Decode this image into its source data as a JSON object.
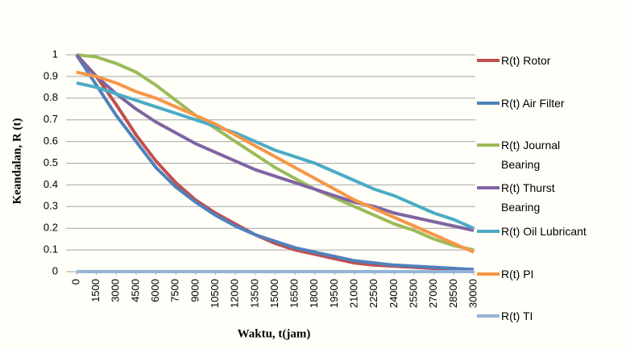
{
  "chart_data": {
    "type": "line",
    "y_label": "Keandalan, R (t)",
    "x_label": "Waktu, t(jam)",
    "x": [
      0,
      1500,
      3000,
      4500,
      6000,
      7500,
      9000,
      10500,
      12000,
      13500,
      15000,
      16500,
      18000,
      19500,
      21000,
      22500,
      24000,
      25500,
      27000,
      28500,
      30000
    ],
    "xlim": [
      0,
      30000
    ],
    "xticks": [
      0,
      1500,
      3000,
      4500,
      6000,
      7500,
      9000,
      10500,
      12000,
      13500,
      15000,
      16500,
      18000,
      19500,
      21000,
      22500,
      24000,
      25500,
      27000,
      28500,
      30000
    ],
    "ylim": [
      0,
      1
    ],
    "yticks": [
      0,
      0.1,
      0.2,
      0.3,
      0.4,
      0.5,
      0.6,
      0.7,
      0.8,
      0.9,
      1
    ],
    "grid": true,
    "legend": "right",
    "series": [
      {
        "name": "R(t) Rotor",
        "color": "#c0504d",
        "values": [
          1,
          0.9,
          0.77,
          0.63,
          0.51,
          0.41,
          0.33,
          0.27,
          0.22,
          0.17,
          0.13,
          0.1,
          0.08,
          0.06,
          0.04,
          0.03,
          0.025,
          0.02,
          0.015,
          0.01,
          0.01
        ]
      },
      {
        "name": "R(t) Air Filter",
        "color": "#4f81bd",
        "values": [
          1,
          0.86,
          0.72,
          0.6,
          0.48,
          0.39,
          0.32,
          0.26,
          0.21,
          0.17,
          0.14,
          0.11,
          0.09,
          0.07,
          0.05,
          0.04,
          0.03,
          0.025,
          0.02,
          0.015,
          0.01
        ]
      },
      {
        "name": "R(t) Journal Bearing",
        "color": "#9bbb59",
        "values": [
          1,
          0.99,
          0.96,
          0.92,
          0.86,
          0.79,
          0.72,
          0.66,
          0.6,
          0.54,
          0.48,
          0.43,
          0.38,
          0.34,
          0.3,
          0.26,
          0.22,
          0.19,
          0.15,
          0.12,
          0.1
        ]
      },
      {
        "name": "R(t) Thurst Bearing",
        "color": "#8064a2",
        "values": [
          1,
          0.9,
          0.82,
          0.75,
          0.69,
          0.64,
          0.59,
          0.55,
          0.51,
          0.47,
          0.44,
          0.41,
          0.38,
          0.35,
          0.32,
          0.3,
          0.27,
          0.25,
          0.23,
          0.21,
          0.19
        ]
      },
      {
        "name": "R(t) Oil Lubricant",
        "color": "#4bacc6",
        "values": [
          0.87,
          0.85,
          0.82,
          0.79,
          0.76,
          0.73,
          0.7,
          0.67,
          0.64,
          0.6,
          0.56,
          0.53,
          0.5,
          0.46,
          0.42,
          0.38,
          0.35,
          0.31,
          0.27,
          0.24,
          0.2
        ]
      },
      {
        "name": "R(t) PI",
        "color": "#f79646",
        "values": [
          0.92,
          0.9,
          0.87,
          0.83,
          0.8,
          0.76,
          0.72,
          0.68,
          0.63,
          0.58,
          0.53,
          0.48,
          0.43,
          0.38,
          0.33,
          0.29,
          0.25,
          0.21,
          0.17,
          0.13,
          0.09
        ]
      },
      {
        "name": "R(t) TI",
        "color": "#95b3d7",
        "values": [
          0,
          0,
          0,
          0,
          0,
          0,
          0,
          0,
          0,
          0,
          0,
          0,
          0,
          0,
          0,
          0,
          0,
          0,
          0,
          0,
          0
        ]
      }
    ]
  }
}
